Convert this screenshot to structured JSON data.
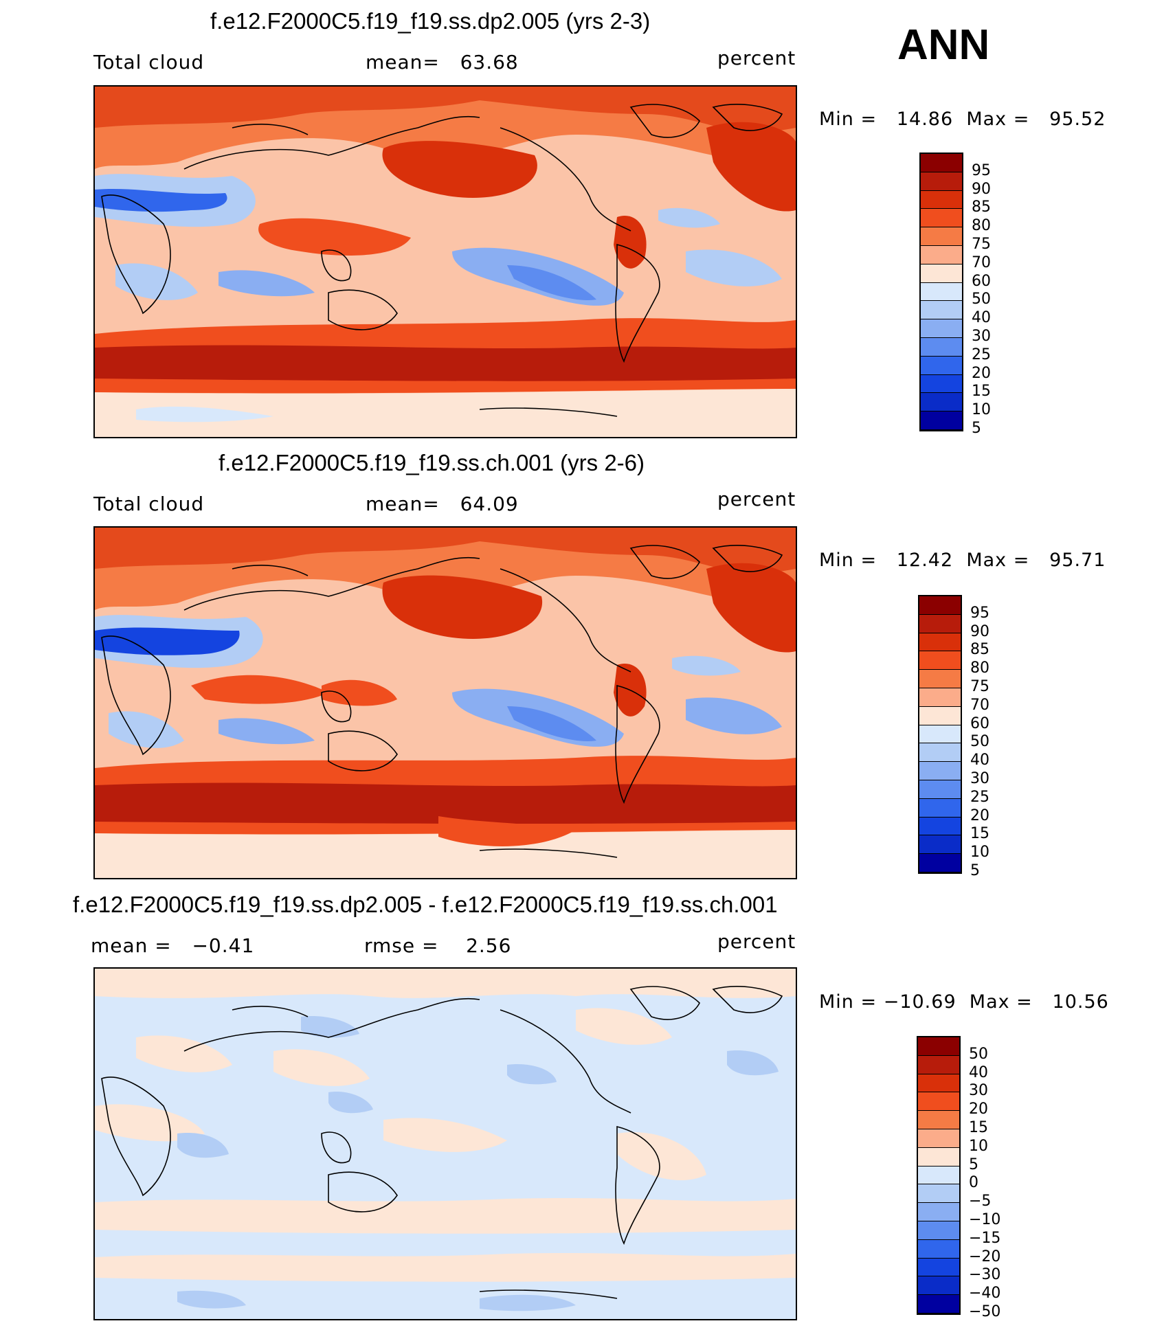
{
  "season": "ANN",
  "panels": [
    {
      "id": "p1",
      "title": "f.e12.F2000C5.f19_f19.ss.dp2.005 (yrs 2-3)",
      "left_label": "Total cloud",
      "center_label": "mean=   63.68",
      "units": "percent",
      "minmax": "Min =   14.86  Max =   95.52",
      "kind": "abs"
    },
    {
      "id": "p2",
      "title": "f.e12.F2000C5.f19_f19.ss.ch.001 (yrs 2-6)",
      "left_label": "Total cloud",
      "center_label": "mean=   64.09",
      "units": "percent",
      "minmax": "Min =   12.42  Max =   95.71",
      "kind": "abs"
    },
    {
      "id": "p3",
      "title": "f.e12.F2000C5.f19_f19.ss.dp2.005 - f.e12.F2000C5.f19_f19.ss.ch.001",
      "left_label": "mean =   −0.41",
      "center_label": "rmse =    2.56",
      "units": "percent",
      "minmax": "Min = −10.69  Max =   10.56",
      "kind": "diff"
    }
  ],
  "colorbars": {
    "abs": {
      "colors": [
        "#8b0000",
        "#b71c0b",
        "#d9300a",
        "#f04e1e",
        "#f57b45",
        "#fbac8a",
        "#fde6d6",
        "#d8e8fb",
        "#b2cdf5",
        "#8aaef2",
        "#5d8cf0",
        "#3066ec",
        "#1444e0",
        "#0a2cc8",
        "#0000a0"
      ],
      "labels": [
        "95",
        "90",
        "85",
        "80",
        "75",
        "70",
        "60",
        "50",
        "40",
        "30",
        "25",
        "20",
        "15",
        "10",
        "5"
      ]
    },
    "diff": {
      "colors": [
        "#8b0000",
        "#b71c0b",
        "#d9300a",
        "#f04e1e",
        "#f57b45",
        "#fbac8a",
        "#fde6d6",
        "#d8e8fb",
        "#b2cdf5",
        "#8aaef2",
        "#5d8cf0",
        "#3066ec",
        "#1444e0",
        "#0a2cc8",
        "#0000a0"
      ],
      "labels": [
        "50",
        "40",
        "30",
        "20",
        "15",
        "10",
        "5",
        "0",
        "−5",
        "−10",
        "−15",
        "−20",
        "−30",
        "−40",
        "−50"
      ]
    }
  },
  "chart_data": [
    {
      "type": "heatmap",
      "title": "f.e12.F2000C5.f19_f19.ss.dp2.005 (yrs 2-3)",
      "variable": "Total cloud",
      "units": "percent",
      "mean": 63.68,
      "min": 14.86,
      "max": 95.52,
      "contour_levels": [
        5,
        10,
        15,
        20,
        25,
        30,
        40,
        50,
        60,
        70,
        75,
        80,
        85,
        90,
        95
      ]
    },
    {
      "type": "heatmap",
      "title": "f.e12.F2000C5.f19_f19.ss.ch.001 (yrs 2-6)",
      "variable": "Total cloud",
      "units": "percent",
      "mean": 64.09,
      "min": 12.42,
      "max": 95.71,
      "contour_levels": [
        5,
        10,
        15,
        20,
        25,
        30,
        40,
        50,
        60,
        70,
        75,
        80,
        85,
        90,
        95
      ]
    },
    {
      "type": "heatmap",
      "title": "f.e12.F2000C5.f19_f19.ss.dp2.005 - f.e12.F2000C5.f19_f19.ss.ch.001",
      "units": "percent",
      "mean": -0.41,
      "rmse": 2.56,
      "min": -10.69,
      "max": 10.56,
      "contour_levels": [
        -50,
        -40,
        -30,
        -20,
        -15,
        -10,
        -5,
        0,
        5,
        10,
        15,
        20,
        30,
        40,
        50
      ]
    }
  ]
}
